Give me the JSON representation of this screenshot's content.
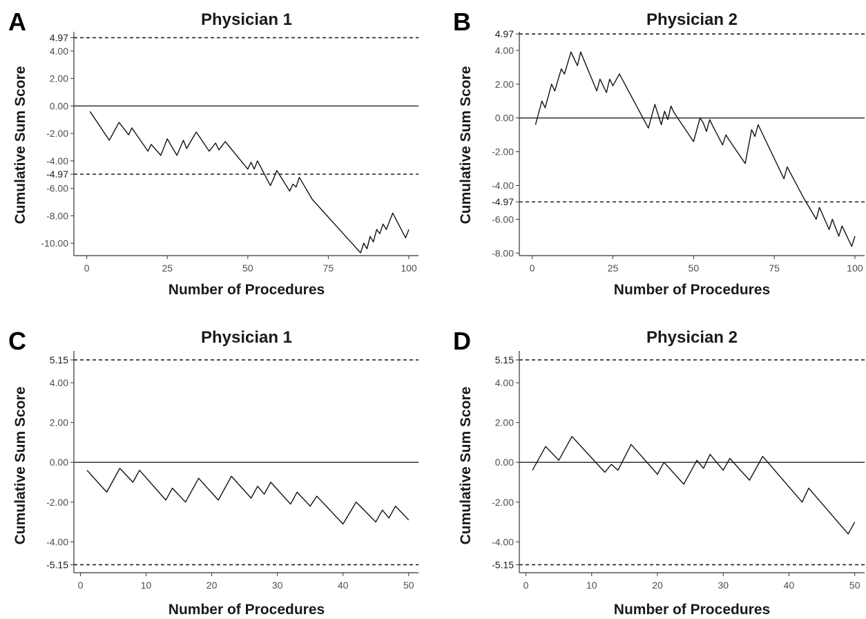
{
  "chart_data": [
    {
      "panel": "A",
      "type": "line",
      "title": "Physician 1",
      "xlabel": "Number of Procedures",
      "ylabel": "Cumulative Sum Score",
      "xlim": [
        -4,
        103
      ],
      "ylim": [
        -10.9,
        5.4
      ],
      "xticks": [
        0,
        25,
        50,
        75,
        100
      ],
      "xtick_labels": [
        "0",
        "25",
        "50",
        "75",
        "100"
      ],
      "yticks": [
        4,
        2,
        0,
        -2,
        -4,
        -6,
        -8,
        -10
      ],
      "ytick_labels": [
        "4.00",
        "2.00",
        "0.00",
        "-2.00",
        "-4.00",
        "-6.00",
        "-8.00",
        "-10.00"
      ],
      "limits": [
        4.97,
        -4.97
      ],
      "limit_labels": [
        "4.97",
        "-4.97"
      ],
      "reference_line": 0,
      "grid": false,
      "series": [
        {
          "x": [
            1,
            7,
            10,
            13,
            14,
            19,
            20,
            23,
            25,
            28,
            30,
            31,
            34,
            38,
            40,
            41,
            43,
            50,
            51,
            52,
            53,
            57,
            58,
            59,
            63,
            64,
            65,
            66,
            70,
            85,
            86,
            87,
            88,
            89,
            90,
            91,
            92,
            93,
            95,
            99,
            100
          ],
          "y": [
            -0.4,
            -2.5,
            -1.2,
            -2.1,
            -1.6,
            -3.3,
            -2.8,
            -3.6,
            -2.4,
            -3.6,
            -2.5,
            -3.1,
            -1.9,
            -3.3,
            -2.7,
            -3.2,
            -2.6,
            -4.6,
            -4.1,
            -4.6,
            -4.0,
            -5.8,
            -5.3,
            -4.7,
            -6.2,
            -5.7,
            -5.9,
            -5.2,
            -6.8,
            -10.7,
            -10.0,
            -10.4,
            -9.5,
            -9.9,
            -9.0,
            -9.3,
            -8.6,
            -9.0,
            -7.8,
            -9.6,
            -9.0
          ]
        }
      ]
    },
    {
      "panel": "B",
      "type": "line",
      "title": "Physician 2",
      "xlabel": "Number of Procedures",
      "ylabel": "Cumulative Sum Score",
      "xlim": [
        -4,
        103
      ],
      "ylim": [
        -8.15,
        5.1
      ],
      "xticks": [
        0,
        25,
        50,
        75,
        100
      ],
      "xtick_labels": [
        "0",
        "25",
        "50",
        "75",
        "100"
      ],
      "yticks": [
        4,
        2,
        0,
        -2,
        -4,
        -6,
        -8
      ],
      "ytick_labels": [
        "4.00",
        "2.00",
        "0.00",
        "-2.00",
        "-4.00",
        "-6.00",
        "-8.00"
      ],
      "limits": [
        4.97,
        -4.97
      ],
      "limit_labels": [
        "4.97",
        "-4.97"
      ],
      "reference_line": 0,
      "grid": false,
      "series": [
        {
          "x": [
            1,
            3,
            4,
            6,
            7,
            9,
            10,
            12,
            13,
            14,
            15,
            20,
            21,
            22,
            23,
            24,
            25,
            27,
            36,
            38,
            40,
            41,
            42,
            43,
            44,
            50,
            52,
            53,
            54,
            55,
            56,
            59,
            60,
            61,
            66,
            68,
            69,
            70,
            78,
            79,
            84,
            88,
            89,
            92,
            93,
            95,
            96,
            99,
            100
          ],
          "y": [
            -0.4,
            1.0,
            0.6,
            2.0,
            1.6,
            2.9,
            2.6,
            3.9,
            3.5,
            3.1,
            3.9,
            1.6,
            2.3,
            1.9,
            1.5,
            2.3,
            1.9,
            2.6,
            -0.6,
            0.8,
            -0.4,
            0.4,
            -0.1,
            0.7,
            0.3,
            -1.4,
            0.0,
            -0.3,
            -0.8,
            -0.1,
            -0.5,
            -1.6,
            -1.0,
            -1.3,
            -2.7,
            -0.7,
            -1.1,
            -0.4,
            -3.6,
            -2.9,
            -4.7,
            -6.0,
            -5.3,
            -6.6,
            -6.0,
            -7.0,
            -6.4,
            -7.6,
            -7.0
          ]
        }
      ]
    },
    {
      "panel": "C",
      "type": "line",
      "title": "Physician 1",
      "xlabel": "Number of Procedures",
      "ylabel": "Cumulative Sum Score",
      "xlim": [
        -1,
        51.5
      ],
      "ylim": [
        -5.55,
        5.6
      ],
      "xticks": [
        0,
        10,
        20,
        30,
        40,
        50
      ],
      "xtick_labels": [
        "0",
        "10",
        "20",
        "30",
        "40",
        "50"
      ],
      "yticks": [
        4,
        2,
        0,
        -2,
        -4
      ],
      "ytick_labels": [
        "4.00",
        "2.00",
        "0.00",
        "-2.00",
        "-4.00"
      ],
      "limits": [
        5.15,
        -5.15
      ],
      "limit_labels": [
        "5.15",
        "-5.15"
      ],
      "reference_line": 0,
      "grid": false,
      "series": [
        {
          "x": [
            1,
            4,
            6,
            8,
            9,
            13,
            14,
            16,
            18,
            21,
            23,
            26,
            27,
            28,
            29,
            32,
            33,
            35,
            36,
            40,
            42,
            45,
            46,
            47,
            48,
            50
          ],
          "y": [
            -0.4,
            -1.5,
            -0.3,
            -1.0,
            -0.4,
            -1.9,
            -1.3,
            -2.0,
            -0.8,
            -1.9,
            -0.7,
            -1.8,
            -1.2,
            -1.6,
            -1.0,
            -2.1,
            -1.5,
            -2.2,
            -1.7,
            -3.1,
            -2.0,
            -3.0,
            -2.4,
            -2.8,
            -2.2,
            -2.9
          ]
        }
      ]
    },
    {
      "panel": "D",
      "type": "line",
      "title": "Physician 2",
      "xlabel": "Number of Procedures",
      "ylabel": "Cumulative Sum Score",
      "xlim": [
        -1,
        51.5
      ],
      "ylim": [
        -5.55,
        5.6
      ],
      "xticks": [
        0,
        10,
        20,
        30,
        40,
        50
      ],
      "xtick_labels": [
        "0",
        "10",
        "20",
        "30",
        "40",
        "50"
      ],
      "yticks": [
        4,
        2,
        0,
        -2,
        -4
      ],
      "ytick_labels": [
        "4.00",
        "2.00",
        "0.00",
        "-2.00",
        "-4.00"
      ],
      "limits": [
        5.15,
        -5.15
      ],
      "limit_labels": [
        "5.15",
        "-5.15"
      ],
      "reference_line": 0,
      "grid": false,
      "series": [
        {
          "x": [
            1,
            3,
            5,
            7,
            12,
            13,
            14,
            16,
            20,
            21,
            24,
            26,
            27,
            28,
            30,
            31,
            34,
            36,
            42,
            43,
            49,
            50
          ],
          "y": [
            -0.4,
            0.8,
            0.1,
            1.3,
            -0.5,
            -0.1,
            -0.4,
            0.9,
            -0.6,
            0.0,
            -1.1,
            0.1,
            -0.3,
            0.4,
            -0.4,
            0.2,
            -0.9,
            0.3,
            -2.0,
            -1.3,
            -3.6,
            -3.0
          ]
        }
      ]
    }
  ]
}
